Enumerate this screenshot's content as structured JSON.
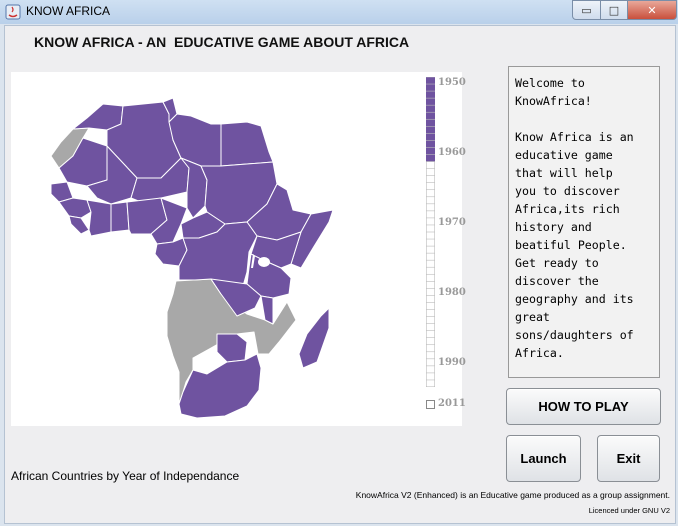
{
  "window": {
    "title": "KNOW AFRICA",
    "min_glyph": "▭",
    "max_glyph": "□",
    "close_glyph": "✕"
  },
  "heading": "KNOW AFRICA - AN  EDUCATIVE GAME ABOUT AFRICA",
  "map": {
    "caption": "African Countries by Year of Independance",
    "independent_color": "#6f53a0",
    "not_yet_color": "#a8a8a8",
    "legend": {
      "labels": [
        "1950",
        "1960",
        "1970",
        "1980",
        "1990",
        "2011"
      ],
      "current_year": 1962,
      "start_year": 1950,
      "end_year": 1994
    }
  },
  "info_text": "Welcome to\nKnowAfrica!\n\nKnow Africa is an\neducative game\nthat will help\nyou to discover\nAfrica,its rich\nhistory and\nbeatiful People.\nGet ready to\ndiscover the\ngeography and its\ngreat\nsons/daughters of\nAfrica.",
  "buttons": {
    "how_to_play": "HOW TO PLAY",
    "launch": "Launch",
    "exit": "Exit"
  },
  "footer": {
    "credits": "KnowAfrica V2 (Enhanced) is an Educative game produced as a group assignment.",
    "license": "Licenced under GNU V2"
  }
}
